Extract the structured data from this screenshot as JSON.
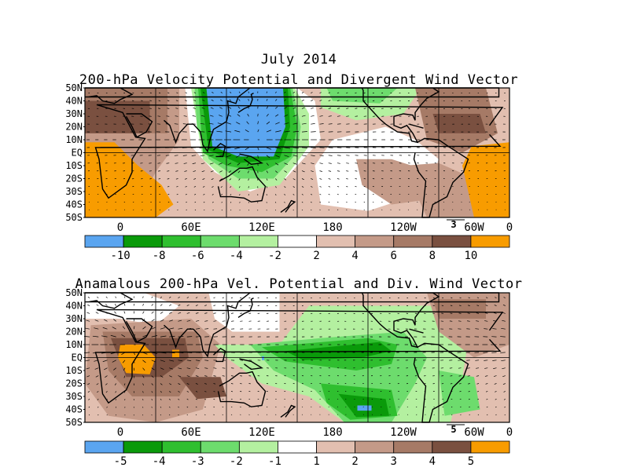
{
  "title": "July 2014",
  "panel1": {
    "title": "200-hPa Velocity Potential and Divergent Wind Vector",
    "lat_labels": [
      "50N",
      "40N",
      "30N",
      "20N",
      "10N",
      "EQ",
      "10S",
      "20S",
      "30S",
      "40S",
      "50S"
    ],
    "lon_labels": [
      "0",
      "60E",
      "120E",
      "180",
      "120W",
      "60W",
      "0"
    ],
    "vector_ref": "3",
    "colorbar": {
      "colors": [
        "#5aa5f0",
        "#0a9a0a",
        "#2fbf2f",
        "#6ddc6d",
        "#b4f0a0",
        "#ffffff",
        "#e2bfb0",
        "#c49a88",
        "#a67a66",
        "#7a5040",
        "#f89c00"
      ],
      "labels": [
        "-10",
        "-8",
        "-6",
        "-4",
        "-2",
        "2",
        "4",
        "6",
        "8",
        "10"
      ]
    }
  },
  "panel2": {
    "title": "Anamalous 200-hPa Vel. Potential and Div. Wind Vector",
    "lat_labels": [
      "50N",
      "40N",
      "30N",
      "20N",
      "10N",
      "EQ",
      "10S",
      "20S",
      "30S",
      "40S",
      "50S"
    ],
    "lon_labels": [
      "0",
      "60E",
      "120E",
      "180",
      "120W",
      "60W",
      "0"
    ],
    "vector_ref": "5",
    "colorbar": {
      "colors": [
        "#5aa5f0",
        "#0a9a0a",
        "#2fbf2f",
        "#6ddc6d",
        "#b4f0a0",
        "#ffffff",
        "#e2bfb0",
        "#c49a88",
        "#a67a66",
        "#7a5040",
        "#f89c00"
      ],
      "labels": [
        "-5",
        "-4",
        "-3",
        "-2",
        "-1",
        "1",
        "2",
        "3",
        "4",
        "5"
      ]
    }
  }
}
